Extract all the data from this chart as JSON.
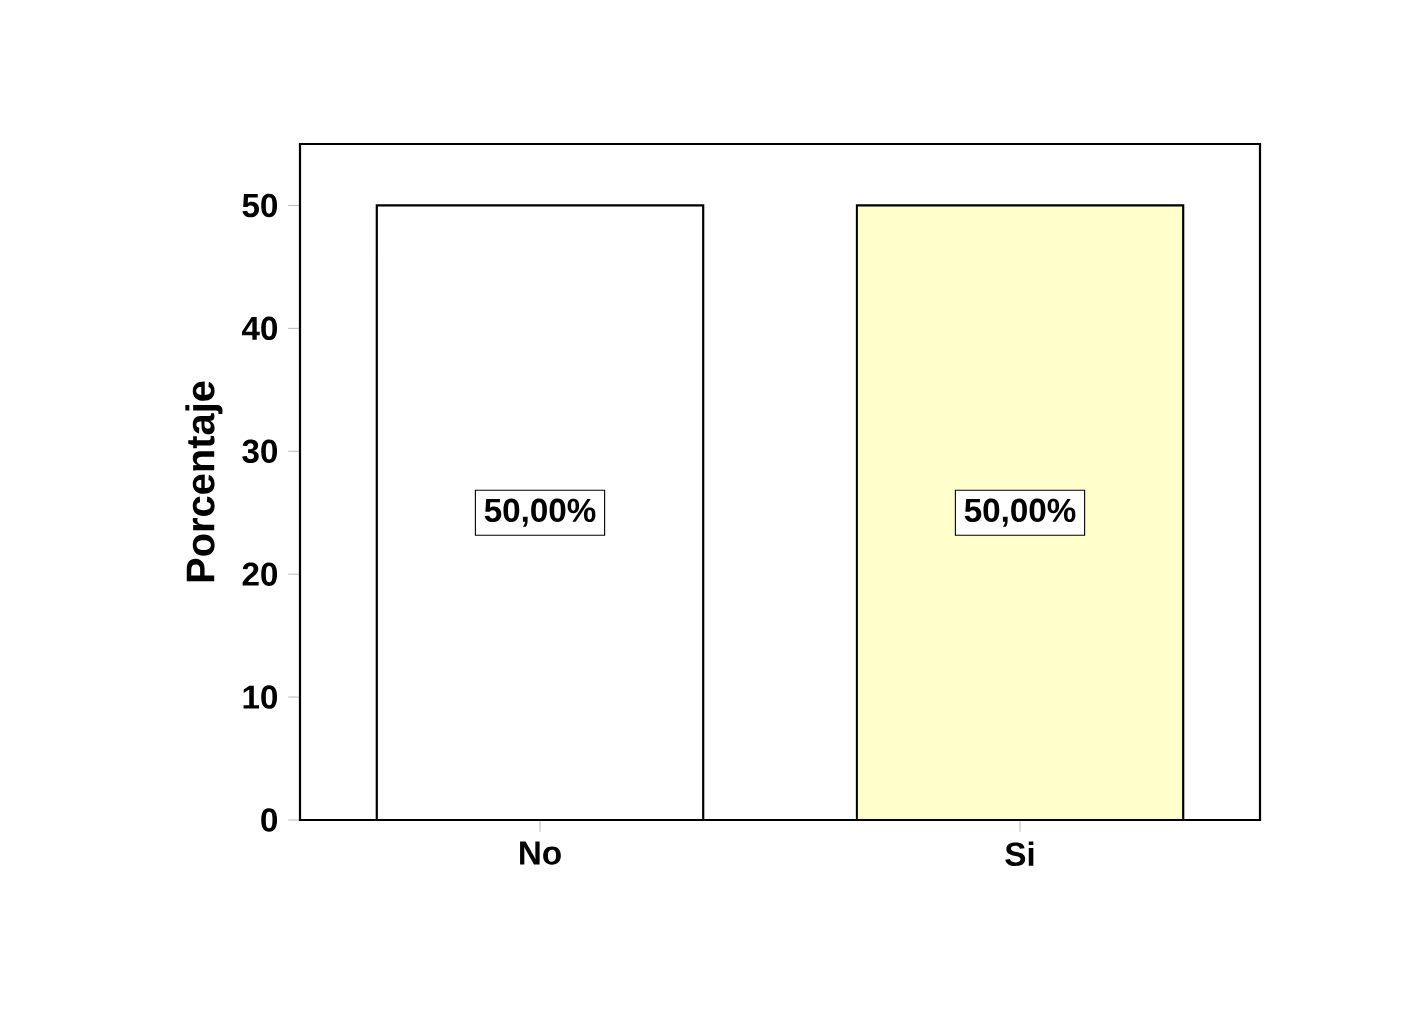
{
  "chart_data": {
    "type": "bar",
    "ylabel": "Porcentaje",
    "categories": [
      "No",
      "Si"
    ],
    "values": [
      50,
      50
    ],
    "colors": [
      "#ffffff",
      "#ffffcc"
    ],
    "value_labels": [
      "50,00%",
      "50,00%"
    ],
    "ylim": [
      0,
      55
    ],
    "yticks": [
      0,
      10,
      20,
      30,
      40,
      50
    ]
  }
}
